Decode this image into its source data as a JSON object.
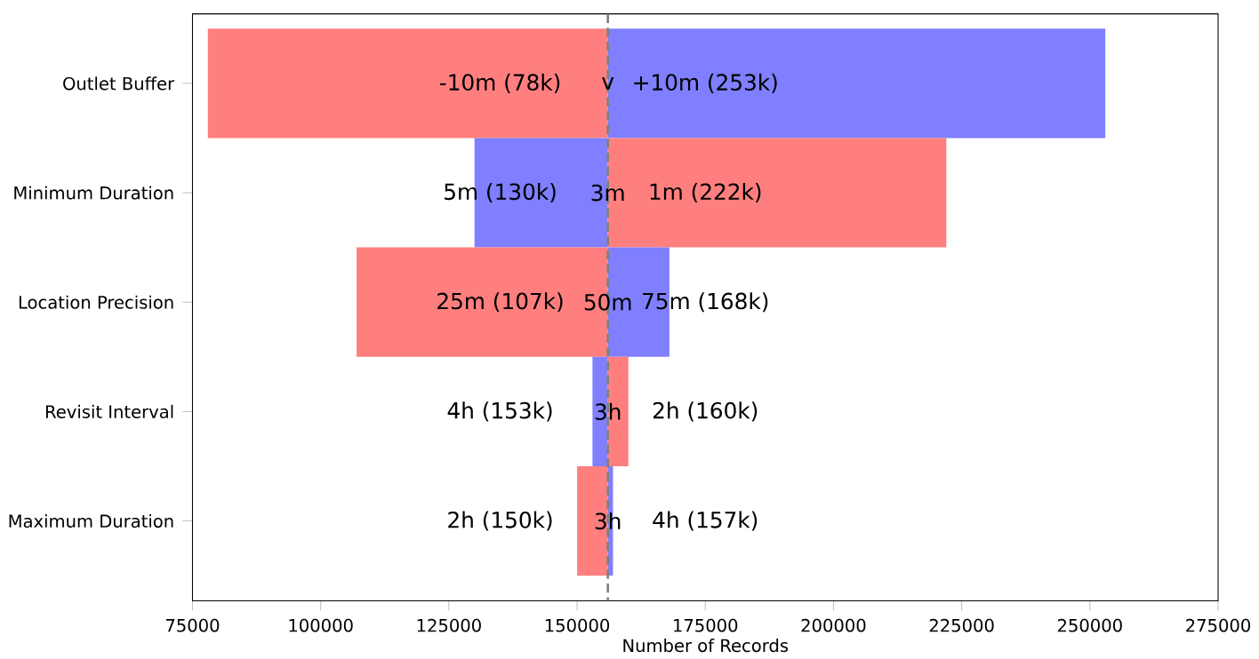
{
  "chart_data": {
    "type": "bar",
    "orientation": "horizontal",
    "xlabel": "Number of Records",
    "categories": [
      "Outlet Buffer",
      "Minimum Duration",
      "Location Precision",
      "Revisit Interval",
      "Maximum Duration"
    ],
    "series": [
      {
        "colors": [
          "#ff7f7f",
          "#7f7fff",
          "#ff7f7f",
          "#7f7fff",
          "#ff7f7f"
        ],
        "base": [
          156000,
          156000,
          156000,
          156000,
          156000
        ],
        "values": [
          -78000,
          -26000,
          -49000,
          -3000,
          -6000
        ]
      },
      {
        "colors": [
          "#7f7fff",
          "#ff7f7f",
          "#7f7fff",
          "#ff7f7f",
          "#7f7fff"
        ],
        "base": [
          156000,
          156000,
          156000,
          156000,
          156000
        ],
        "values": [
          97000,
          66000,
          12000,
          4000,
          1000
        ]
      }
    ],
    "annotations": [
      "-10m (78k)",
      "v",
      "+10m (253k)",
      "5m (130k)",
      "3m",
      "1m (222k)",
      "25m (107k)",
      "50m",
      "75m (168k)",
      "4h (153k)",
      "3h",
      "2h (160k)",
      "2h (150k)",
      "3h",
      "4h (157k)"
    ],
    "ref_lines": [
      {
        "axis": "x",
        "value": 156000,
        "color": "#808080",
        "line_style": "dashed"
      }
    ],
    "xlim": [
      75000,
      275000
    ],
    "xticks": [
      75000,
      100000,
      125000,
      150000,
      175000,
      200000,
      225000,
      250000,
      275000
    ]
  }
}
